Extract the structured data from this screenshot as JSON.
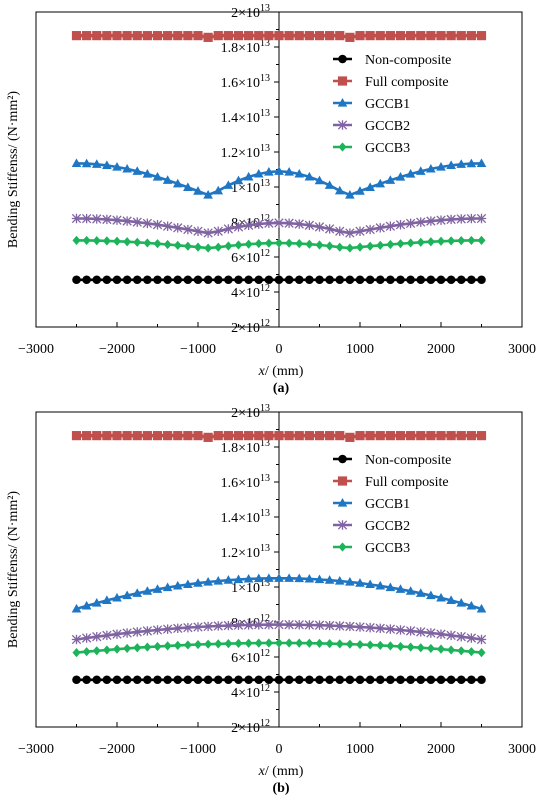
{
  "chart_data": [
    {
      "type": "line",
      "panel_label": "(a)",
      "xlabel_italic": "x",
      "xlabel_rest": "/ (mm)",
      "ylabel": "Bending Stiffenss/ (N·mm²)",
      "xlim": [
        -3000,
        3000
      ],
      "ylim": [
        2000000000000.0,
        20000000000000.0
      ],
      "xticks": [
        "−3000",
        "−2000",
        "−1000",
        "0",
        "1000",
        "2000",
        "3000"
      ],
      "yticks": [
        {
          "mantissa": "2",
          "exp": "13"
        },
        {
          "mantissa": "1.8",
          "exp": "13"
        },
        {
          "mantissa": "1.6",
          "exp": "13"
        },
        {
          "mantissa": "1.4",
          "exp": "13"
        },
        {
          "mantissa": "1.2",
          "exp": "13"
        },
        {
          "mantissa": "1",
          "exp": "13"
        },
        {
          "mantissa": "8",
          "exp": "12"
        },
        {
          "mantissa": "6",
          "exp": "12"
        },
        {
          "mantissa": "4",
          "exp": "12"
        },
        {
          "mantissa": "2",
          "exp": "12"
        }
      ],
      "series": [
        {
          "name": "Non-composite",
          "color": "#000000",
          "marker": "circle",
          "profile": "flat",
          "x_range": [
            -2500,
            2500
          ],
          "base": 4700000000000.0
        },
        {
          "name": "Full composite",
          "color": "#c0504d",
          "marker": "square",
          "profile": "notch",
          "x_range": [
            -2500,
            2500
          ],
          "base": 18650000000000.0,
          "notch_value": 18550000000000.0,
          "notch_x": [
            -900,
            900
          ]
        },
        {
          "name": "GCCB1",
          "color": "#1f77c4",
          "marker": "triangle",
          "profile": "double_dip",
          "x_range": [
            -2500,
            2500
          ],
          "end": 11350000000000.0,
          "dip": 9500000000000.0,
          "dip_x": 850,
          "center": 10900000000000.0
        },
        {
          "name": "GCCB2",
          "color": "#8064a2",
          "marker": "asterisk",
          "profile": "double_dip",
          "x_range": [
            -2500,
            2500
          ],
          "end": 8200000000000.0,
          "dip": 7350000000000.0,
          "dip_x": 850,
          "center": 7950000000000.0
        },
        {
          "name": "GCCB3",
          "color": "#1db35a",
          "marker": "diamond",
          "profile": "double_dip",
          "x_range": [
            -2500,
            2500
          ],
          "end": 6950000000000.0,
          "dip": 6500000000000.0,
          "dip_x": 850,
          "center": 6800000000000.0
        }
      ],
      "legend_position": "upper-right"
    },
    {
      "type": "line",
      "panel_label": "(b)",
      "xlabel_italic": "x",
      "xlabel_rest": "/ (mm)",
      "ylabel": "Bending Stiffenss/ (N·mm²)",
      "xlim": [
        -3000,
        3000
      ],
      "ylim": [
        2000000000000.0,
        20000000000000.0
      ],
      "xticks": [
        "−3000",
        "−2000",
        "−1000",
        "0",
        "1000",
        "2000",
        "3000"
      ],
      "yticks": [
        {
          "mantissa": "2",
          "exp": "13"
        },
        {
          "mantissa": "1.8",
          "exp": "13"
        },
        {
          "mantissa": "1.6",
          "exp": "13"
        },
        {
          "mantissa": "1.4",
          "exp": "13"
        },
        {
          "mantissa": "1.2",
          "exp": "13"
        },
        {
          "mantissa": "1",
          "exp": "13"
        },
        {
          "mantissa": "8",
          "exp": "12"
        },
        {
          "mantissa": "6",
          "exp": "12"
        },
        {
          "mantissa": "4",
          "exp": "12"
        },
        {
          "mantissa": "2",
          "exp": "12"
        }
      ],
      "series": [
        {
          "name": "Non-composite",
          "color": "#000000",
          "marker": "circle",
          "profile": "flat",
          "x_range": [
            -2500,
            2500
          ],
          "base": 4700000000000.0
        },
        {
          "name": "Full composite",
          "color": "#c0504d",
          "marker": "square",
          "profile": "notch",
          "x_range": [
            -2500,
            2500
          ],
          "base": 18650000000000.0,
          "notch_value": 18550000000000.0,
          "notch_x": [
            -900,
            900
          ]
        },
        {
          "name": "GCCB1",
          "color": "#1f77c4",
          "marker": "triangle",
          "profile": "arch",
          "x_range": [
            -2500,
            2500
          ],
          "end": 8750000000000.0,
          "center": 10500000000000.0
        },
        {
          "name": "GCCB2",
          "color": "#8064a2",
          "marker": "asterisk",
          "profile": "arch",
          "x_range": [
            -2500,
            2500
          ],
          "end": 7000000000000.0,
          "center": 7850000000000.0
        },
        {
          "name": "GCCB3",
          "color": "#1db35a",
          "marker": "diamond",
          "profile": "arch",
          "x_range": [
            -2500,
            2500
          ],
          "end": 6250000000000.0,
          "center": 6800000000000.0
        }
      ],
      "legend_position": "upper-right"
    }
  ]
}
